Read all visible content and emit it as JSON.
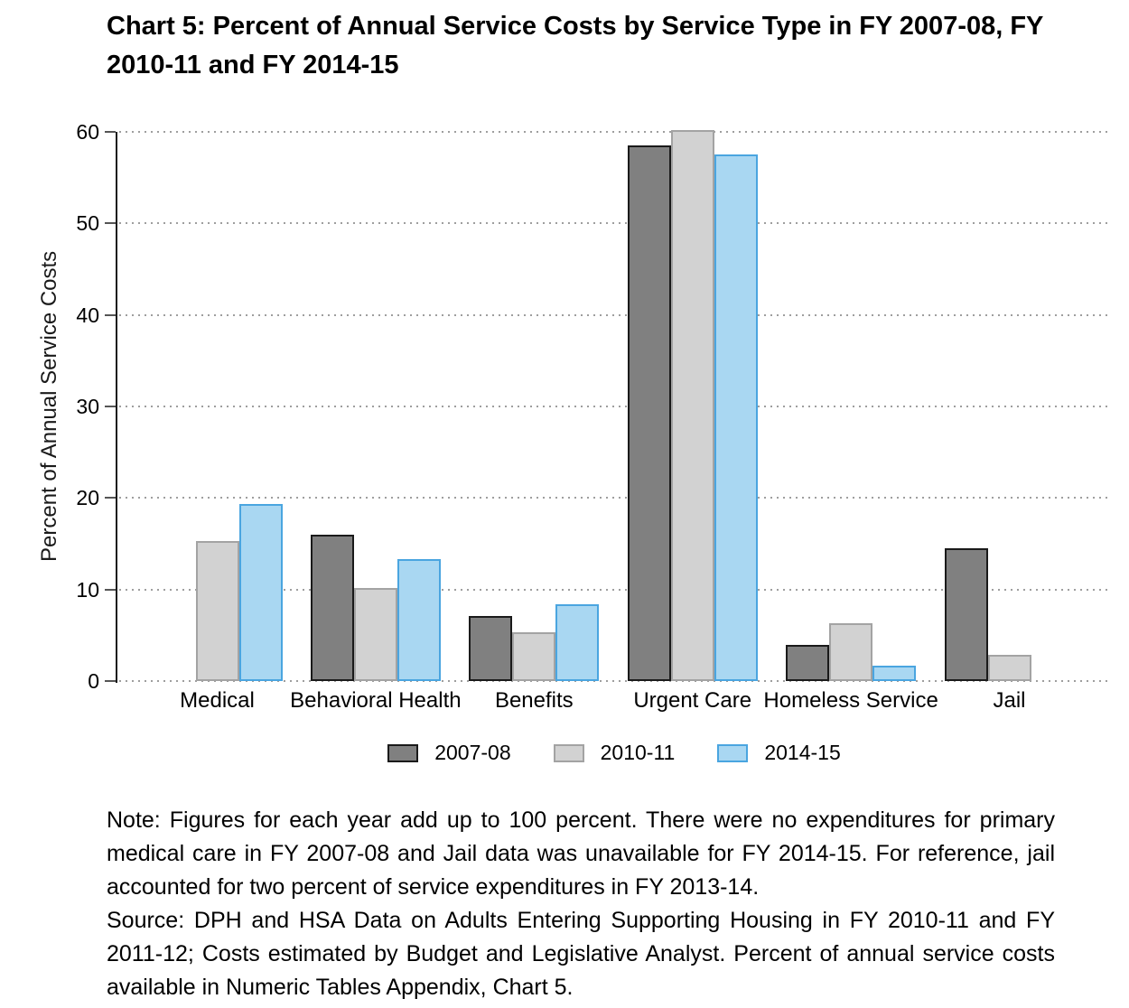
{
  "title": "Chart 5: Percent of Annual Service Costs by Service Type in FY 2007-08, FY 2010-11 and FY 2014-15",
  "chart_data": {
    "type": "bar",
    "categories": [
      "Medical",
      "Behavioral Health",
      "Benefits",
      "Urgent Care",
      "Homeless Service",
      "Jail"
    ],
    "series": [
      {
        "name": "2007-08",
        "values": [
          null,
          16.0,
          7.1,
          58.5,
          3.9,
          14.5
        ],
        "fill": "#808080",
        "border": "#1a1a1a"
      },
      {
        "name": "2010-11",
        "values": [
          15.3,
          10.2,
          5.3,
          60.2,
          6.3,
          2.9
        ],
        "fill": "#d2d2d2",
        "border": "#a3a3a3"
      },
      {
        "name": "2014-15",
        "values": [
          19.3,
          13.3,
          8.4,
          57.5,
          1.7,
          null
        ],
        "fill": "#a9d7f2",
        "border": "#4aa5e0"
      }
    ],
    "ylabel": "Percent of Annual Service Costs",
    "xlabel": "",
    "yticks": [
      0,
      10,
      20,
      30,
      40,
      50,
      60
    ],
    "ylim": [
      0,
      60
    ],
    "grid": "dotted horizontal gridlines at each y tick",
    "gridline_color": "#9e9e9e",
    "axis_color": "#1a1a1a",
    "legend_position": "bottom"
  },
  "note": "Note: Figures for each year add up to 100 percent. There were no expenditures for primary medical care in FY 2007-08 and Jail data was unavailable for FY 2014-15. For reference, jail accounted for two percent of service expenditures in FY 2013-14.",
  "source": "Source: DPH and HSA Data on Adults Entering Supporting Housing in FY 2010-11 and FY 2011-12; Costs estimated by Budget and Legislative Analyst. Percent of annual service costs available in Numeric Tables Appendix, Chart 5."
}
